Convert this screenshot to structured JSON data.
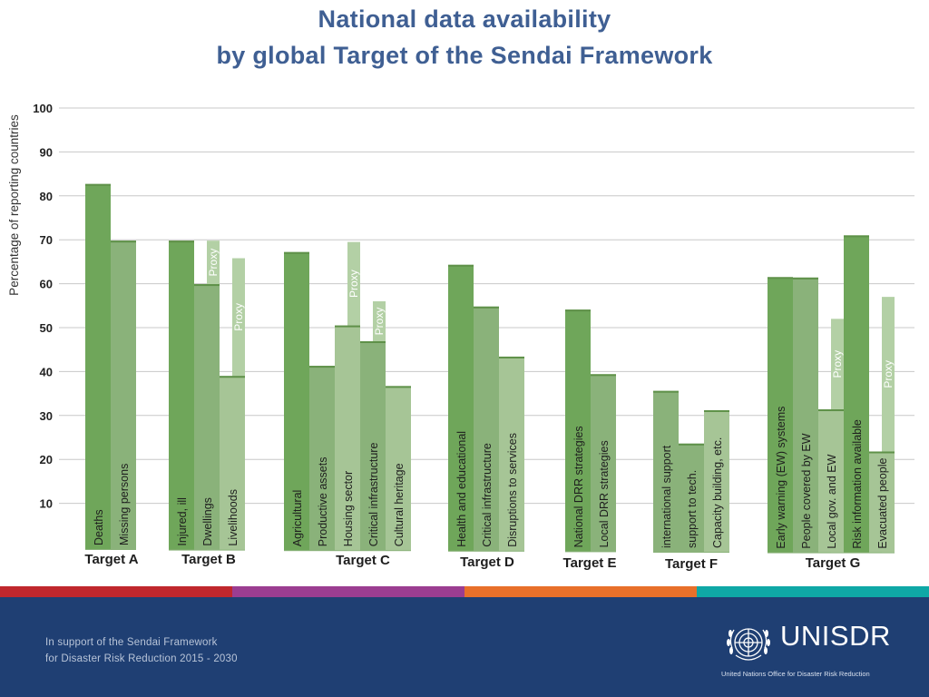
{
  "slide": {
    "title_line_1": "National data availability",
    "title_line_2": "by global Target of the Sendai Framework"
  },
  "colors": {
    "title": "#3f5f93",
    "dark_green": "#6fa65a",
    "mid_green": "#8ab27a",
    "light_green": "#a6c596",
    "proxy_green": "#b3d0a5",
    "stripes": [
      "#c0272d",
      "#9b3d91",
      "#e8702a",
      "#0fa8a6"
    ],
    "footer_bg": "#1f3f73"
  },
  "chart_data": {
    "type": "bar",
    "ylabel": "Percentage  of reporting countries",
    "xlabel": "",
    "ylim": [
      0,
      100
    ],
    "yticks": [
      10,
      20,
      30,
      40,
      50,
      60,
      70,
      80,
      90,
      100
    ],
    "grid": true,
    "proxy_label": "Proxy",
    "groups": [
      {
        "name": "Target A",
        "bars": [
          {
            "label": "Deaths",
            "value": 82.7,
            "shade": "dark"
          },
          {
            "label": "Missing persons",
            "value": 69.8,
            "shade": "mid"
          }
        ]
      },
      {
        "name": "Target B",
        "bars": [
          {
            "label": "Injured, ill",
            "value": 69.8,
            "shade": "dark"
          },
          {
            "label": "Dwellings",
            "value": 59.9,
            "proxy_value": 69.8,
            "shade": "mid"
          },
          {
            "label": "Livelihoods",
            "value": 39.0,
            "proxy_value": 65.8,
            "shade": "light"
          }
        ]
      },
      {
        "name": "Target C",
        "bars": [
          {
            "label": "Agricultural",
            "value": 67.2,
            "shade": "dark"
          },
          {
            "label": "Productive assets",
            "value": 41.3,
            "shade": "mid"
          },
          {
            "label": "Housing sector",
            "value": 50.5,
            "proxy_value": 69.5,
            "shade": "light"
          },
          {
            "label": "Critical infrastructure",
            "value": 46.9,
            "proxy_value": 56.0,
            "shade": "mid"
          },
          {
            "label": "Cultural heritage",
            "value": 36.7,
            "shade": "light"
          }
        ]
      },
      {
        "name": "Target D",
        "bars": [
          {
            "label": "Health and educational",
            "value": 64.3,
            "shade": "dark"
          },
          {
            "label": "Critical infrastructure",
            "value": 54.8,
            "shade": "mid"
          },
          {
            "label": "Disruptions to services",
            "value": 43.4,
            "shade": "light"
          }
        ]
      },
      {
        "name": "Target E",
        "bars": [
          {
            "label": "National DRR strategies",
            "value": 54.1,
            "shade": "dark"
          },
          {
            "label": "Local DRR strategies",
            "value": 39.4,
            "shade": "mid"
          }
        ]
      },
      {
        "name": "Target F",
        "bars": [
          {
            "label": "international support",
            "value": 35.6,
            "shade": "mid"
          },
          {
            "label": "support to  tech.",
            "value": 23.6,
            "shade": "mid"
          },
          {
            "label": "Capacity building, etc.",
            "value": 31.2,
            "shade": "light"
          }
        ]
      },
      {
        "name": "Target G",
        "bars": [
          {
            "label": "Early warning  (EW) systems",
            "value": 61.5,
            "shade": "dark"
          },
          {
            "label": "People covered by EW",
            "value": 61.4,
            "shade": "mid"
          },
          {
            "label": "Local gov. and EW",
            "value": 31.4,
            "proxy_value": 52.0,
            "shade": "light"
          },
          {
            "label": "Risk information available",
            "value": 71.0,
            "shade": "dark"
          },
          {
            "label": "Evacuated people",
            "value": 21.8,
            "proxy_value": 57.0,
            "shade": "light"
          }
        ]
      }
    ]
  },
  "footer": {
    "line_1": "In support of the Sendai Framework",
    "line_2": "for Disaster Risk Reduction 2015 - 2030",
    "brand": "UNISDR",
    "brand_sub": "United Nations Office for Disaster Risk Reduction",
    "emblem_icon": "un-emblem-icon"
  }
}
